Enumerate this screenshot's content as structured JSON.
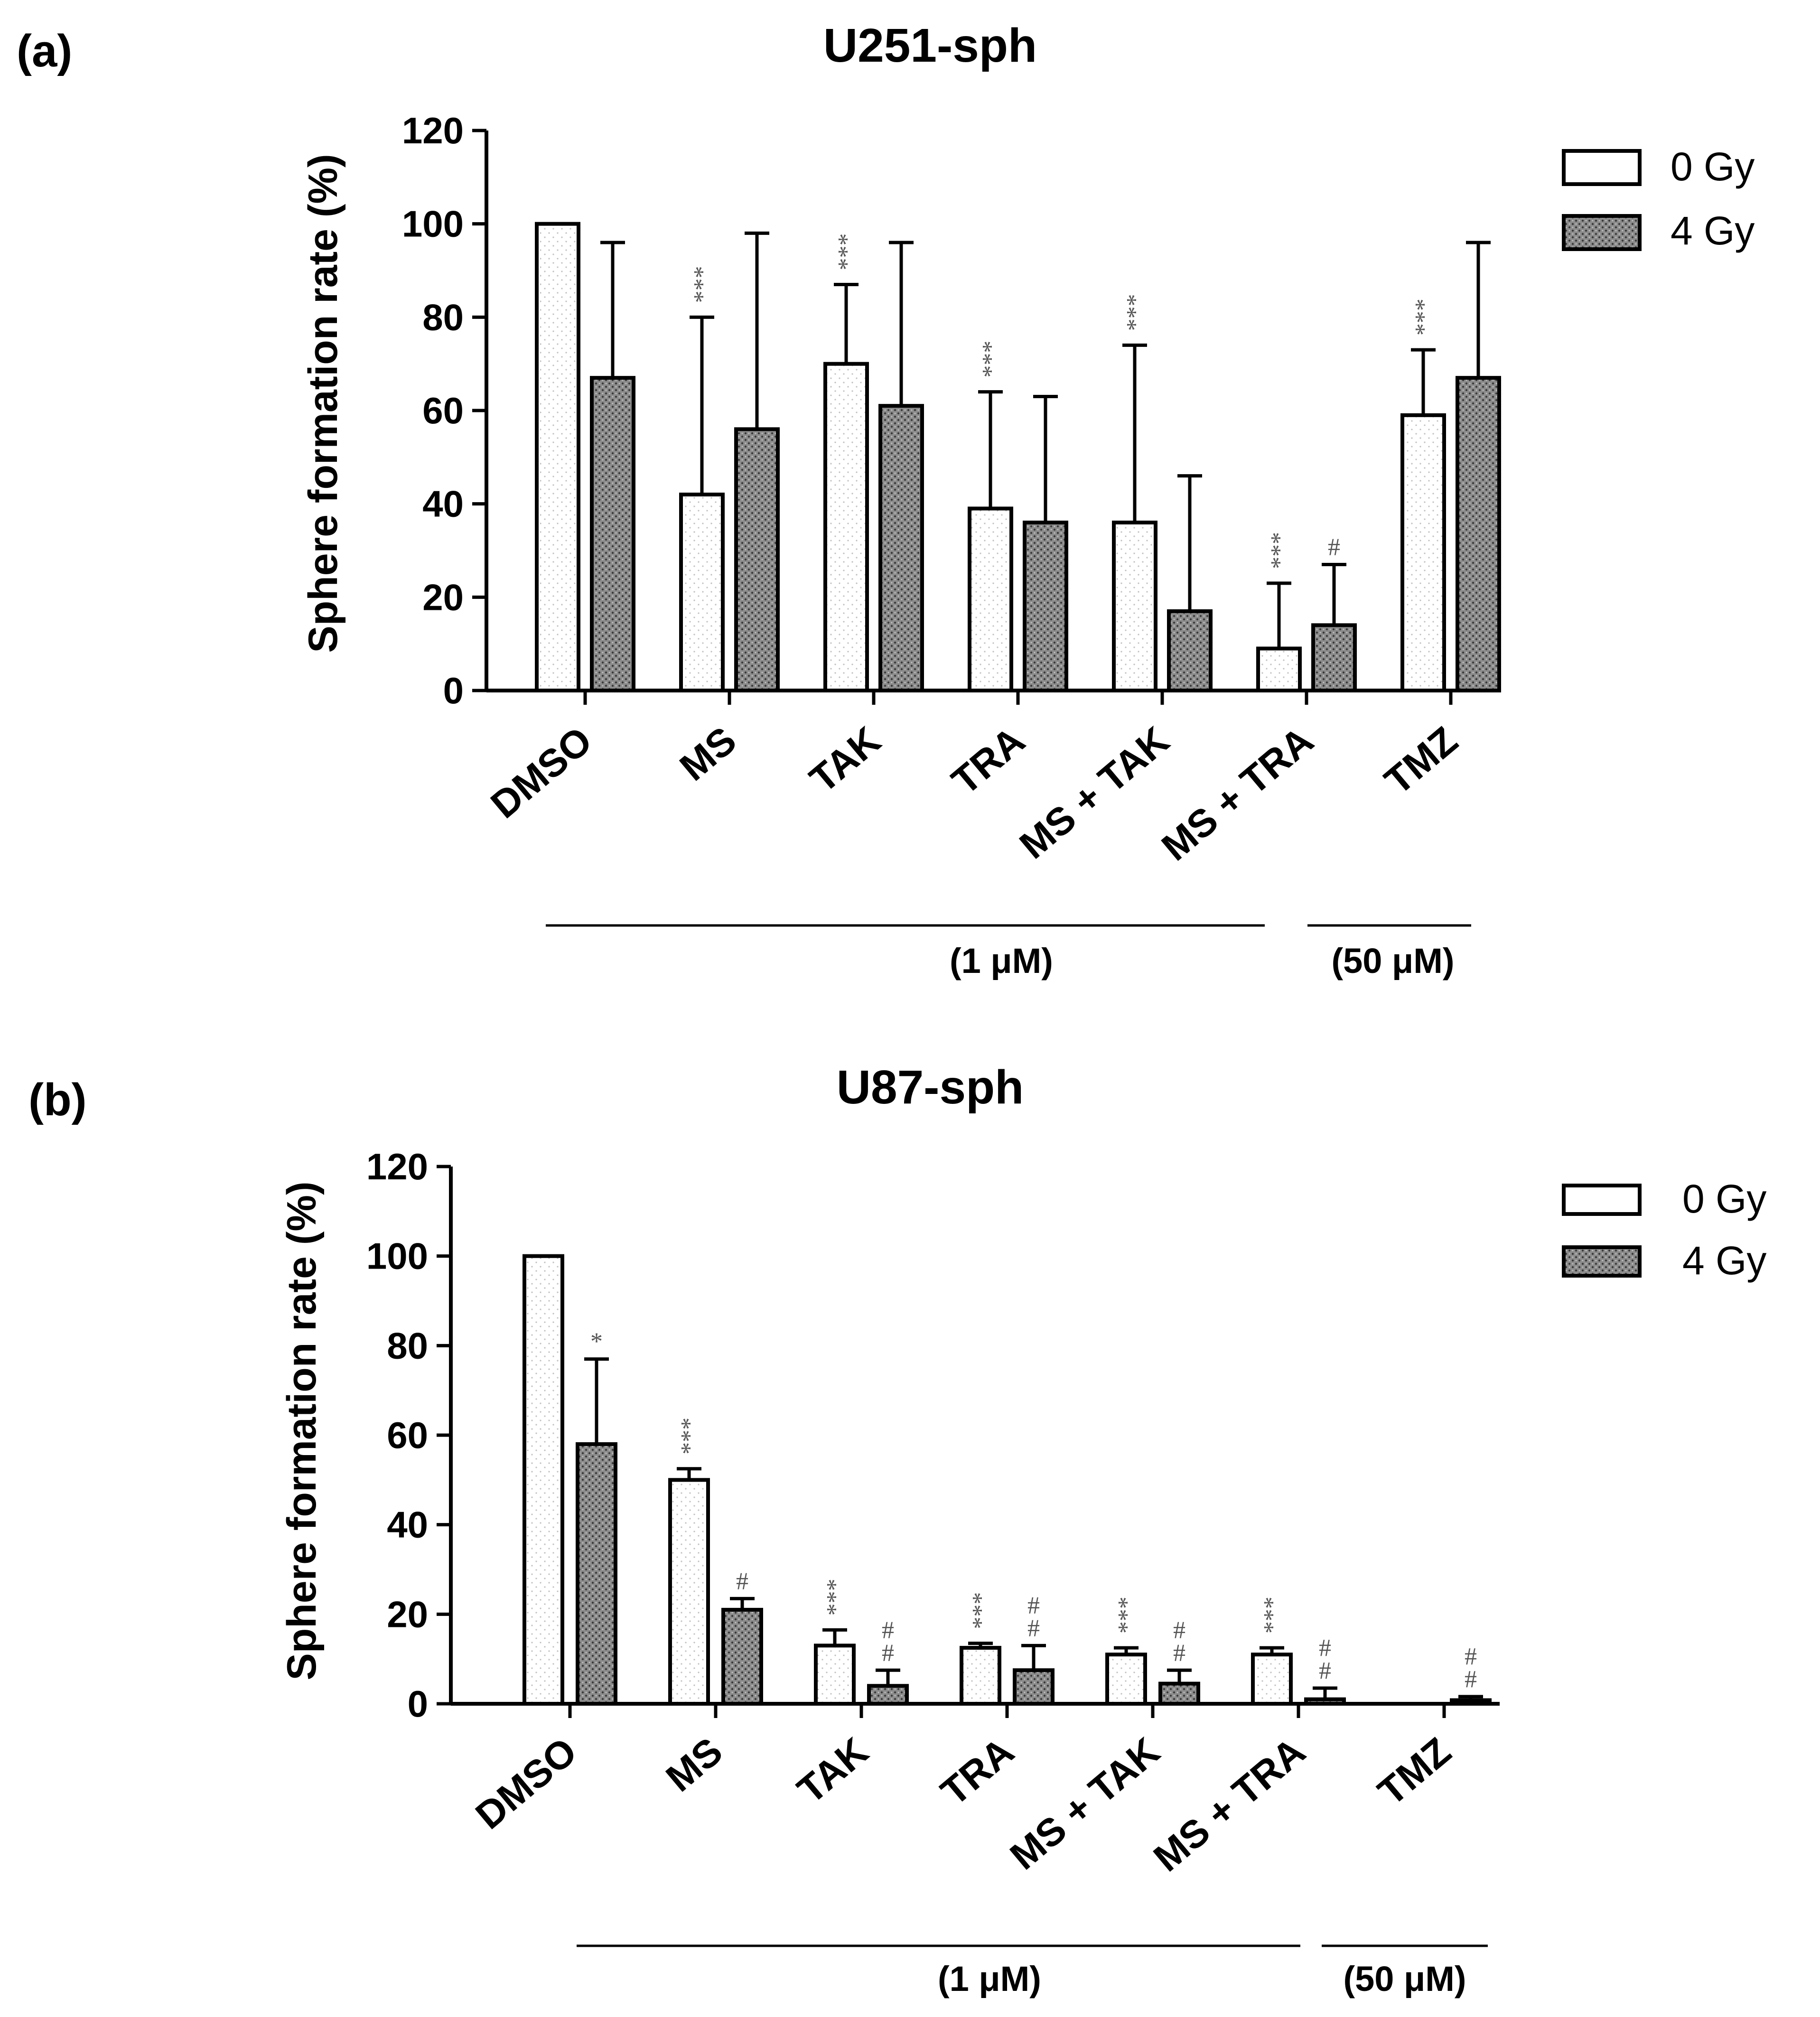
{
  "colors": {
    "bar_0gy": "#ffffff",
    "bar_4gy": "#8c8c8c",
    "stroke": "#000000",
    "sig": "#555555"
  },
  "chart_data": [
    {
      "panel": "(a)",
      "type": "bar",
      "title": "U251-sph",
      "ylabel": "Sphere formation rate (%)",
      "xlabel": "",
      "ylim": [
        0,
        120
      ],
      "yticks": [
        "0",
        "20",
        "40",
        "60",
        "80",
        "100",
        "120"
      ],
      "categories": [
        "DMSO",
        "MS",
        "TAK",
        "TRA",
        "MS + TAK",
        "MS + TRA",
        "TMZ"
      ],
      "series": [
        {
          "name": "0 Gy",
          "values": [
            100,
            42,
            70,
            39,
            36,
            9,
            59
          ],
          "errors": [
            0,
            38,
            17,
            25,
            38,
            14,
            14
          ],
          "sig": [
            "",
            "***",
            "***",
            "***",
            "***",
            "***",
            "***"
          ]
        },
        {
          "name": "4 Gy",
          "values": [
            67,
            56,
            61,
            36,
            17,
            14,
            67
          ],
          "errors": [
            29,
            42,
            35,
            27,
            29,
            13,
            29
          ],
          "sig": [
            "",
            "",
            "",
            "",
            "",
            "#",
            ""
          ]
        }
      ],
      "legend": [
        "0 Gy",
        "4 Gy"
      ],
      "concentrations": [
        "(1 μM)",
        "(50 μM)"
      ]
    },
    {
      "panel": "(b)",
      "type": "bar",
      "title": "U87-sph",
      "ylabel": "Sphere formation rate (%)",
      "xlabel": "",
      "ylim": [
        0,
        120
      ],
      "yticks": [
        "0",
        "20",
        "40",
        "60",
        "80",
        "100",
        "120"
      ],
      "categories": [
        "DMSO",
        "MS",
        "TAK",
        "TRA",
        "MS + TAK",
        "MS + TRA",
        "TMZ"
      ],
      "series": [
        {
          "name": "0 Gy",
          "values": [
            100,
            50,
            13,
            12.5,
            11,
            11,
            0
          ],
          "errors": [
            0,
            2.5,
            3.5,
            1,
            1.5,
            1.5,
            0
          ],
          "sig": [
            "",
            "***",
            "***",
            "***",
            "***",
            "***",
            ""
          ]
        },
        {
          "name": "4 Gy",
          "values": [
            58,
            21,
            4,
            7.5,
            4.5,
            1,
            0.8
          ],
          "errors": [
            19,
            2.5,
            3.5,
            5.5,
            3,
            2.5,
            0.8
          ],
          "sig": [
            "*",
            "#",
            "##",
            "##",
            "##",
            "##",
            "##"
          ]
        }
      ],
      "legend": [
        "0 Gy",
        "4 Gy"
      ],
      "concentrations": [
        "(1 μM)",
        "(50 μM)"
      ]
    }
  ]
}
